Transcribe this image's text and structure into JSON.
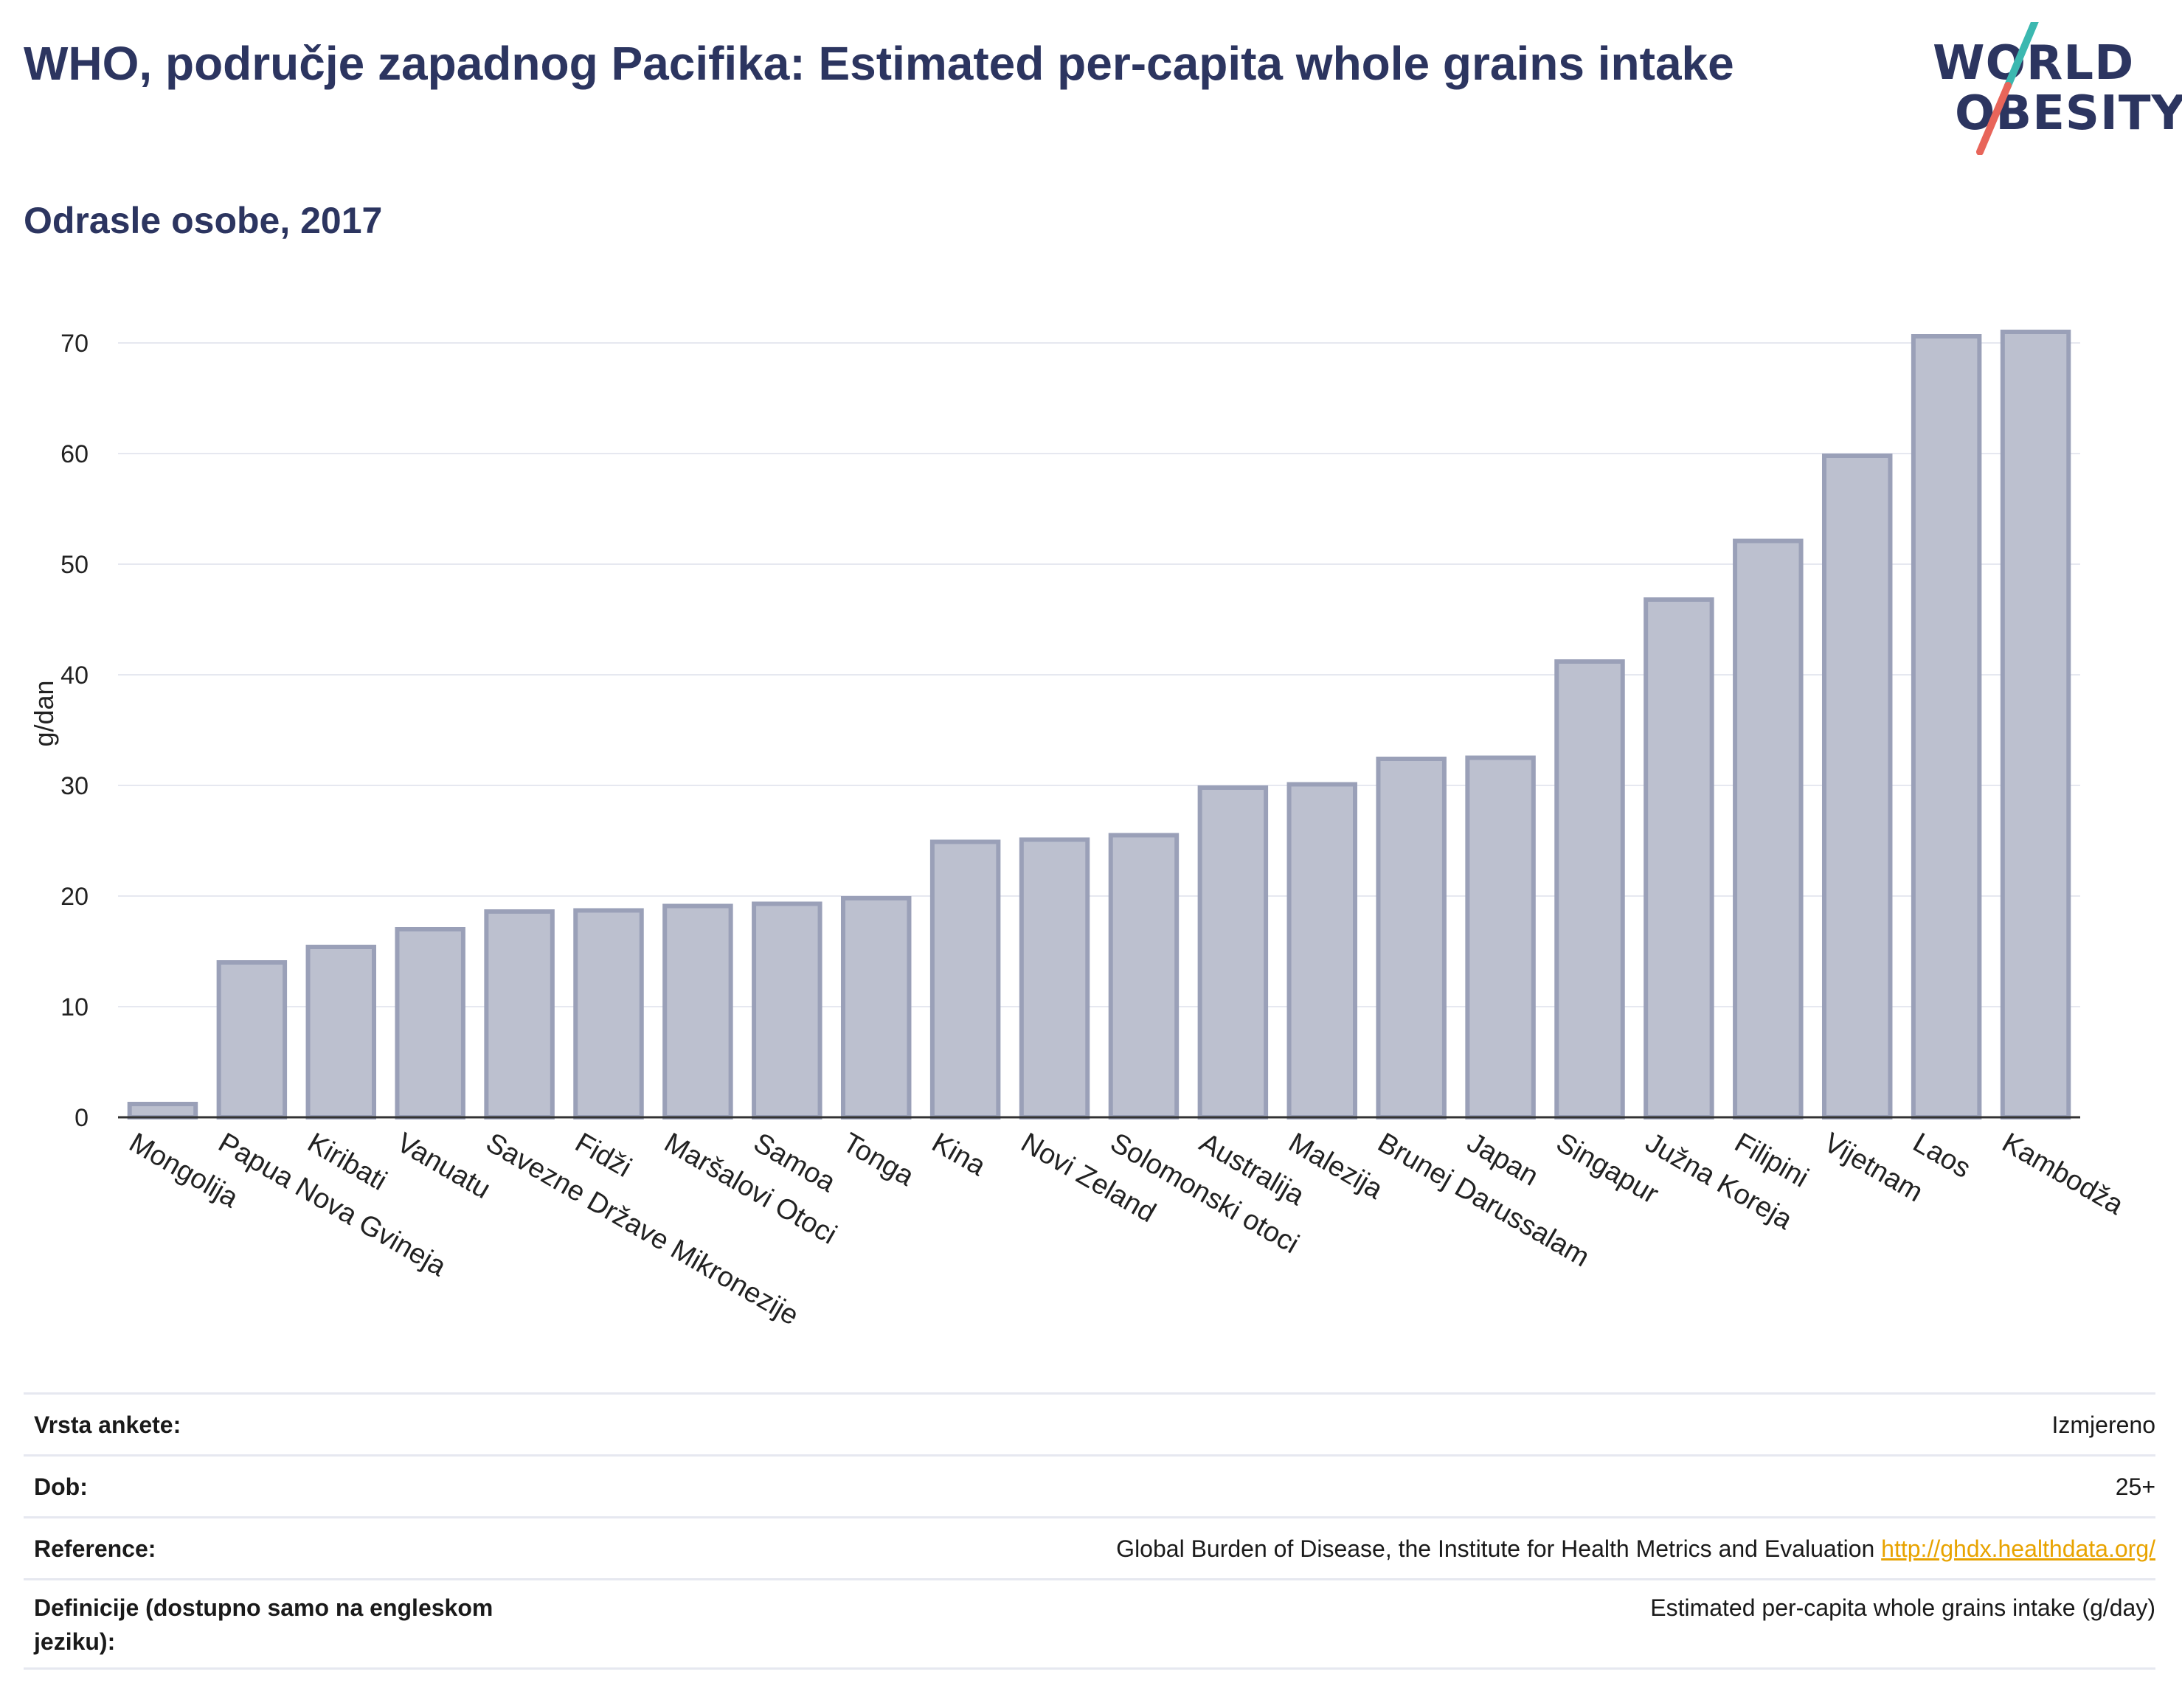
{
  "header": {
    "title": "WHO, područje zapadnog Pacifika: Estimated per-capita whole grains intake",
    "subtitle": "Odrasle osobe, 2017"
  },
  "logo": {
    "line1": "WORLD",
    "line2": "OBESITY",
    "accent_teal": "#3bb8b0",
    "accent_red": "#e8655a"
  },
  "colors": {
    "bar_fill": "#bcc0cf",
    "bar_stroke": "#9aa0b8",
    "grid": "#e6e8f0",
    "axis": "#333333",
    "title": "#2c3560"
  },
  "chart_data": {
    "type": "bar",
    "ylabel": "g/dan",
    "ylim": [
      0,
      73
    ],
    "yticks": [
      0,
      10,
      20,
      30,
      40,
      50,
      60,
      70
    ],
    "grid": true,
    "categories": [
      "Mongolija",
      "Papua Nova Gvineja",
      "Kiribati",
      "Vanuatu",
      "Savezne Države Mikronezije",
      "Fidži",
      "Maršalovi Otoci",
      "Samoa",
      "Tonga",
      "Kina",
      "Novi Zeland",
      "Solomonski otoci",
      "Australija",
      "Malezija",
      "Brunej Darussalam",
      "Japan",
      "Singapur",
      "Južna Koreja",
      "Filipini",
      "Vijetnam",
      "Laos",
      "Kambodža"
    ],
    "values": [
      1.2,
      14.0,
      15.4,
      17.0,
      18.6,
      18.7,
      19.1,
      19.3,
      19.8,
      24.9,
      25.1,
      25.5,
      29.8,
      30.1,
      32.4,
      32.5,
      41.2,
      46.8,
      52.1,
      59.8,
      70.6,
      71.0
    ]
  },
  "footer": {
    "rows": [
      {
        "label": "Vrsta ankete:",
        "value": "Izmjereno"
      },
      {
        "label": "Dob:",
        "value": "25+"
      },
      {
        "label": "Reference:",
        "value": "Global Burden of Disease, the Institute for Health Metrics and Evaluation",
        "link": "http://ghdx.healthdata.org/"
      },
      {
        "label": "Definicije (dostupno samo na engleskom jeziku):",
        "value": "Estimated per-capita whole grains intake (g/day)"
      }
    ]
  }
}
